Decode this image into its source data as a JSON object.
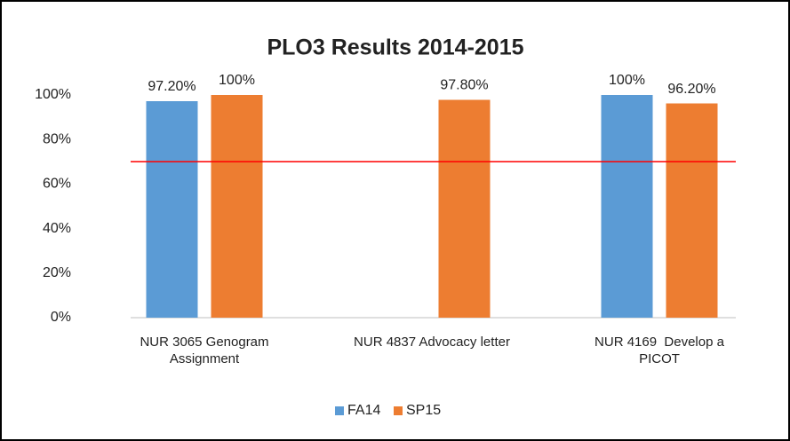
{
  "chart_data": {
    "type": "bar",
    "title": "PLO3 Results 2014-2015",
    "categories": [
      "NUR 3065 Genogram Assignment",
      "NUR 4837 Advocacy letter",
      "NUR 4169  Develop a PICOT"
    ],
    "series": [
      {
        "name": "FA14",
        "color": "#5b9bd5",
        "values": [
          97.2,
          null,
          100
        ],
        "value_labels": [
          "97.20%",
          null,
          "100%"
        ]
      },
      {
        "name": "SP15",
        "color": "#ed7d31",
        "values": [
          100,
          97.8,
          96.2
        ],
        "value_labels": [
          "100%",
          "97.80%",
          "96.20%"
        ]
      }
    ],
    "ylim": [
      0,
      100
    ],
    "yticks": [
      {
        "value": 0,
        "label": "0%"
      },
      {
        "value": 20,
        "label": "20%"
      },
      {
        "value": 40,
        "label": "40%"
      },
      {
        "value": 60,
        "label": "60%"
      },
      {
        "value": 80,
        "label": "80%"
      },
      {
        "value": 100,
        "label": "100%"
      }
    ],
    "grid": false,
    "reference_line": {
      "value": 70,
      "color": "#ff0000"
    },
    "legend": "bottom"
  }
}
